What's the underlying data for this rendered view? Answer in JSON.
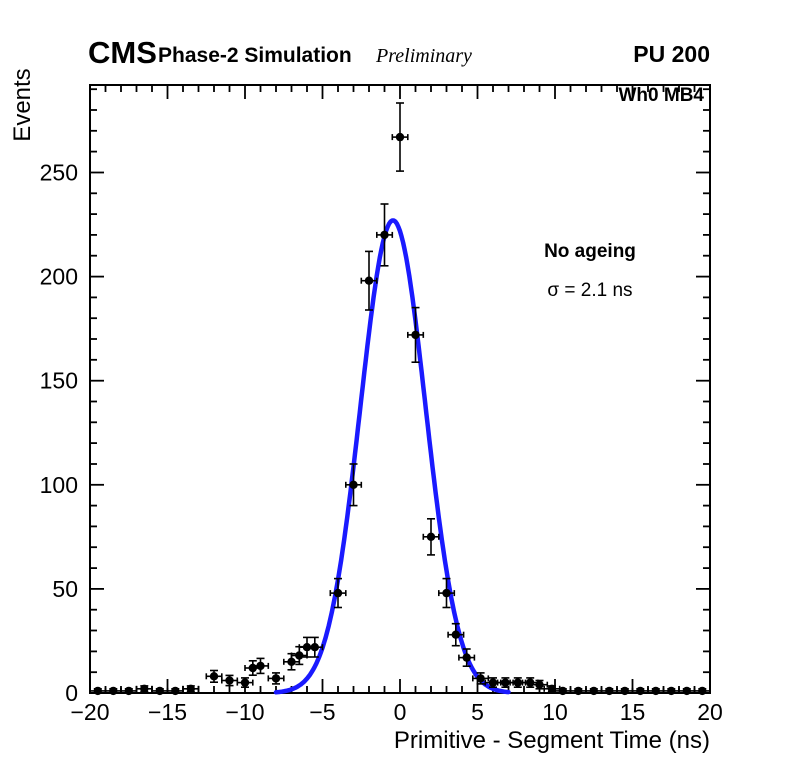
{
  "header": {
    "experiment": "CMS",
    "subtitle": "Phase-2 Simulation",
    "preliminary": "Preliminary",
    "pileup": "PU 200"
  },
  "plot": {
    "region_label": "Wh0 MB4",
    "annotation_line1": "No ageing",
    "annotation_line2": "σ = 2.1 ns"
  },
  "chart_data": {
    "type": "scatter",
    "title": "",
    "xlabel": "Primitive - Segment Time (ns)",
    "ylabel": "Events",
    "xlim": [
      -20,
      20
    ],
    "ylim": [
      0,
      292
    ],
    "x_ticks": [
      -20,
      -15,
      -10,
      -5,
      0,
      5,
      10,
      15,
      20
    ],
    "y_ticks": [
      0,
      50,
      100,
      150,
      200,
      250
    ],
    "x_minor_step": 1,
    "y_minor_step": 10,
    "grid": false,
    "legend": "none",
    "series": [
      {
        "name": "data",
        "type": "errorbar",
        "marker": "filled-circle",
        "marker_color": "#000000",
        "bin_half_width": 0.5,
        "points": [
          [
            -19.5,
            1
          ],
          [
            -18.5,
            1
          ],
          [
            -17.5,
            1
          ],
          [
            -16.5,
            2
          ],
          [
            -15.5,
            1
          ],
          [
            -14.5,
            1
          ],
          [
            -13.5,
            2
          ],
          [
            -12,
            8
          ],
          [
            -11,
            6
          ],
          [
            -10,
            5
          ],
          [
            -9.5,
            12
          ],
          [
            -9,
            13
          ],
          [
            -8,
            7
          ],
          [
            -7,
            15
          ],
          [
            -6.5,
            18
          ],
          [
            -6,
            22
          ],
          [
            -5.5,
            22
          ],
          [
            -4,
            48
          ],
          [
            -3,
            100
          ],
          [
            -2,
            198
          ],
          [
            -1,
            220
          ],
          [
            0,
            267
          ],
          [
            1,
            172
          ],
          [
            2,
            75
          ],
          [
            3,
            48
          ],
          [
            3.6,
            28
          ],
          [
            4.3,
            17
          ],
          [
            5.2,
            7
          ],
          [
            6,
            5
          ],
          [
            6.8,
            5
          ],
          [
            7.6,
            5
          ],
          [
            8.4,
            5
          ],
          [
            9,
            4
          ],
          [
            9.8,
            2
          ],
          [
            10.5,
            1
          ],
          [
            11.5,
            1
          ],
          [
            12.5,
            1
          ],
          [
            13.5,
            1
          ],
          [
            14.5,
            1
          ],
          [
            15.5,
            1
          ],
          [
            16.5,
            1
          ],
          [
            17.5,
            1
          ],
          [
            18.5,
            1
          ],
          [
            19.5,
            1
          ]
        ]
      },
      {
        "name": "gaussian_fit",
        "type": "function",
        "shape": "gaussian",
        "color": "#1a1aff",
        "amplitude": 227,
        "mean": -0.45,
        "sigma": 2.1,
        "x_range": [
          -8,
          7
        ]
      }
    ]
  }
}
